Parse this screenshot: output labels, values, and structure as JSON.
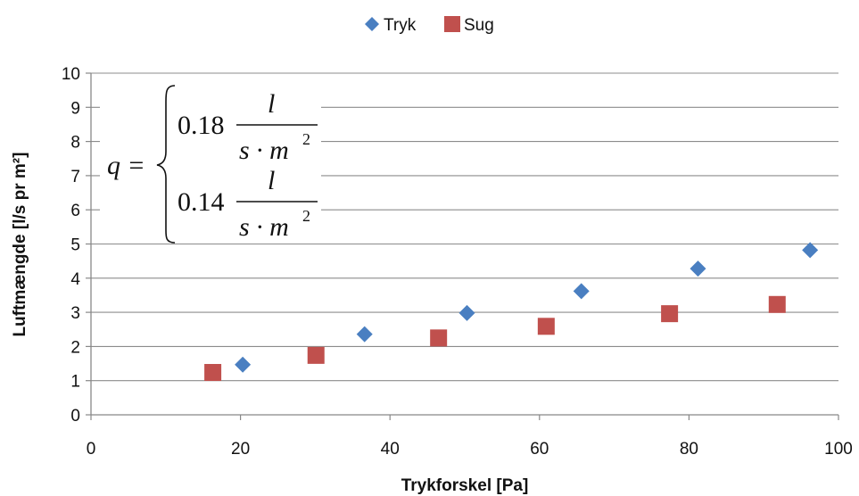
{
  "chart_data": {
    "type": "scatter",
    "title": "",
    "xlabel": "Trykforskel [Pa]",
    "ylabel": "Luftmængde [l/s pr m²]",
    "xlim": [
      0,
      100
    ],
    "ylim": [
      0,
      10
    ],
    "xticks": [
      "0",
      "20",
      "40",
      "60",
      "80",
      "100"
    ],
    "yticks": [
      "0",
      "1",
      "2",
      "3",
      "4",
      "5",
      "6",
      "7",
      "8",
      "9",
      "10"
    ],
    "grid": "horizontal",
    "legend_position": "top-center",
    "series": [
      {
        "name": "Tryk",
        "marker": "diamond",
        "color": "#4a7fc1",
        "points": [
          {
            "x": 20.3,
            "y": 1.47
          },
          {
            "x": 36.6,
            "y": 2.36
          },
          {
            "x": 50.3,
            "y": 2.98
          },
          {
            "x": 65.6,
            "y": 3.62
          },
          {
            "x": 81.2,
            "y": 4.28
          },
          {
            "x": 96.2,
            "y": 4.82
          }
        ]
      },
      {
        "name": "Sug",
        "marker": "square",
        "color": "#c0504d",
        "points": [
          {
            "x": 16.3,
            "y": 1.24
          },
          {
            "x": 30.1,
            "y": 1.74
          },
          {
            "x": 46.5,
            "y": 2.25
          },
          {
            "x": 60.9,
            "y": 2.59
          },
          {
            "x": 77.4,
            "y": 2.96
          },
          {
            "x": 91.8,
            "y": 3.23
          }
        ]
      }
    ],
    "annotation": {
      "lhs": "q =",
      "cases": [
        {
          "coef": "0.18",
          "num": "l",
          "den": "s · m",
          "exp": "2"
        },
        {
          "coef": "0.14",
          "num": "l",
          "den": "s · m",
          "exp": "2"
        }
      ]
    }
  }
}
